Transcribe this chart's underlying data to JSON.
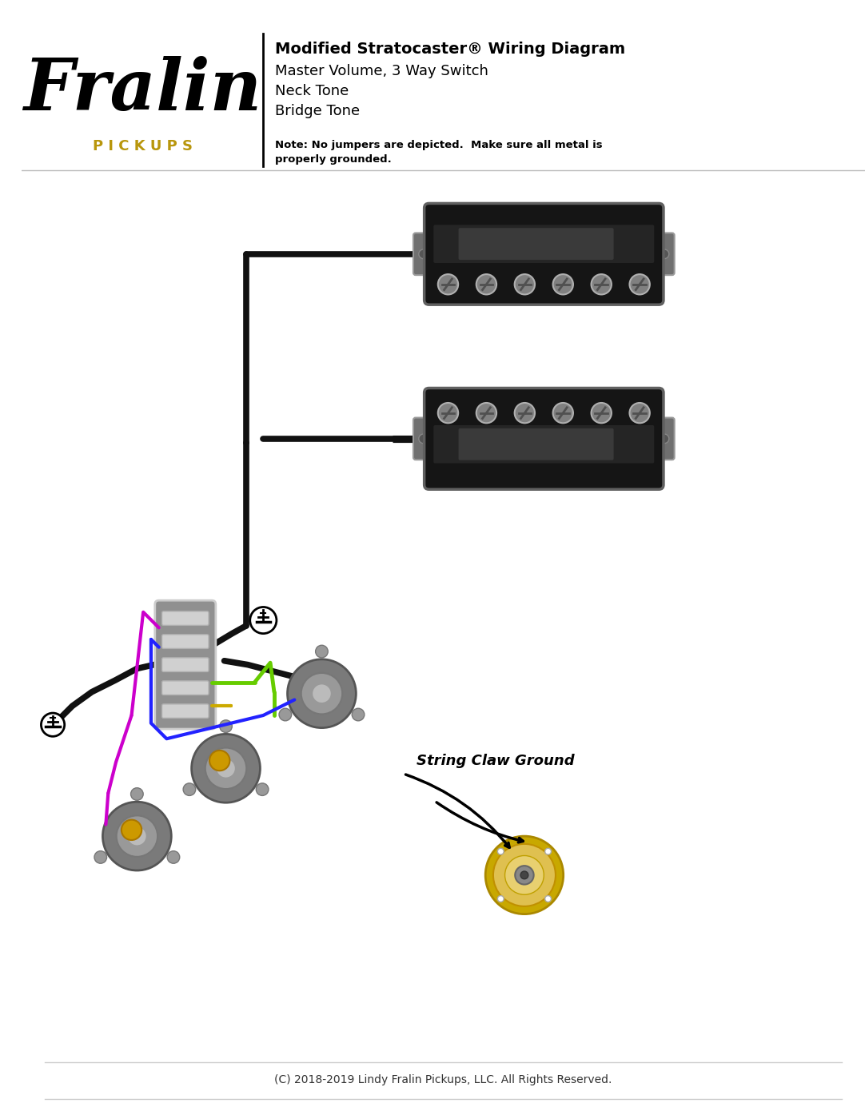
{
  "title_bold": "Modified Stratocaster® Wiring Diagram",
  "title_lines": [
    "Master Volume, 3 Way Switch",
    "Neck Tone",
    "Bridge Tone"
  ],
  "note_text": "Note: No jumpers are depicted.  Make sure all metal is\nproperly grounded.",
  "footer": "(C) 2018-2019 Lindy Fralin Pickups, LLC. All Rights Reserved.",
  "fralin_text": "Fralin",
  "pickups_text": "PICKUPS",
  "string_claw_label": "String Claw Ground",
  "bg_color": "#ffffff",
  "wire_black": "#111111",
  "wire_green": "#66cc00",
  "wire_purple": "#cc00cc",
  "wire_blue": "#2222ff",
  "wire_yellow": "#ccaa00",
  "gold_color": "#b8960c"
}
